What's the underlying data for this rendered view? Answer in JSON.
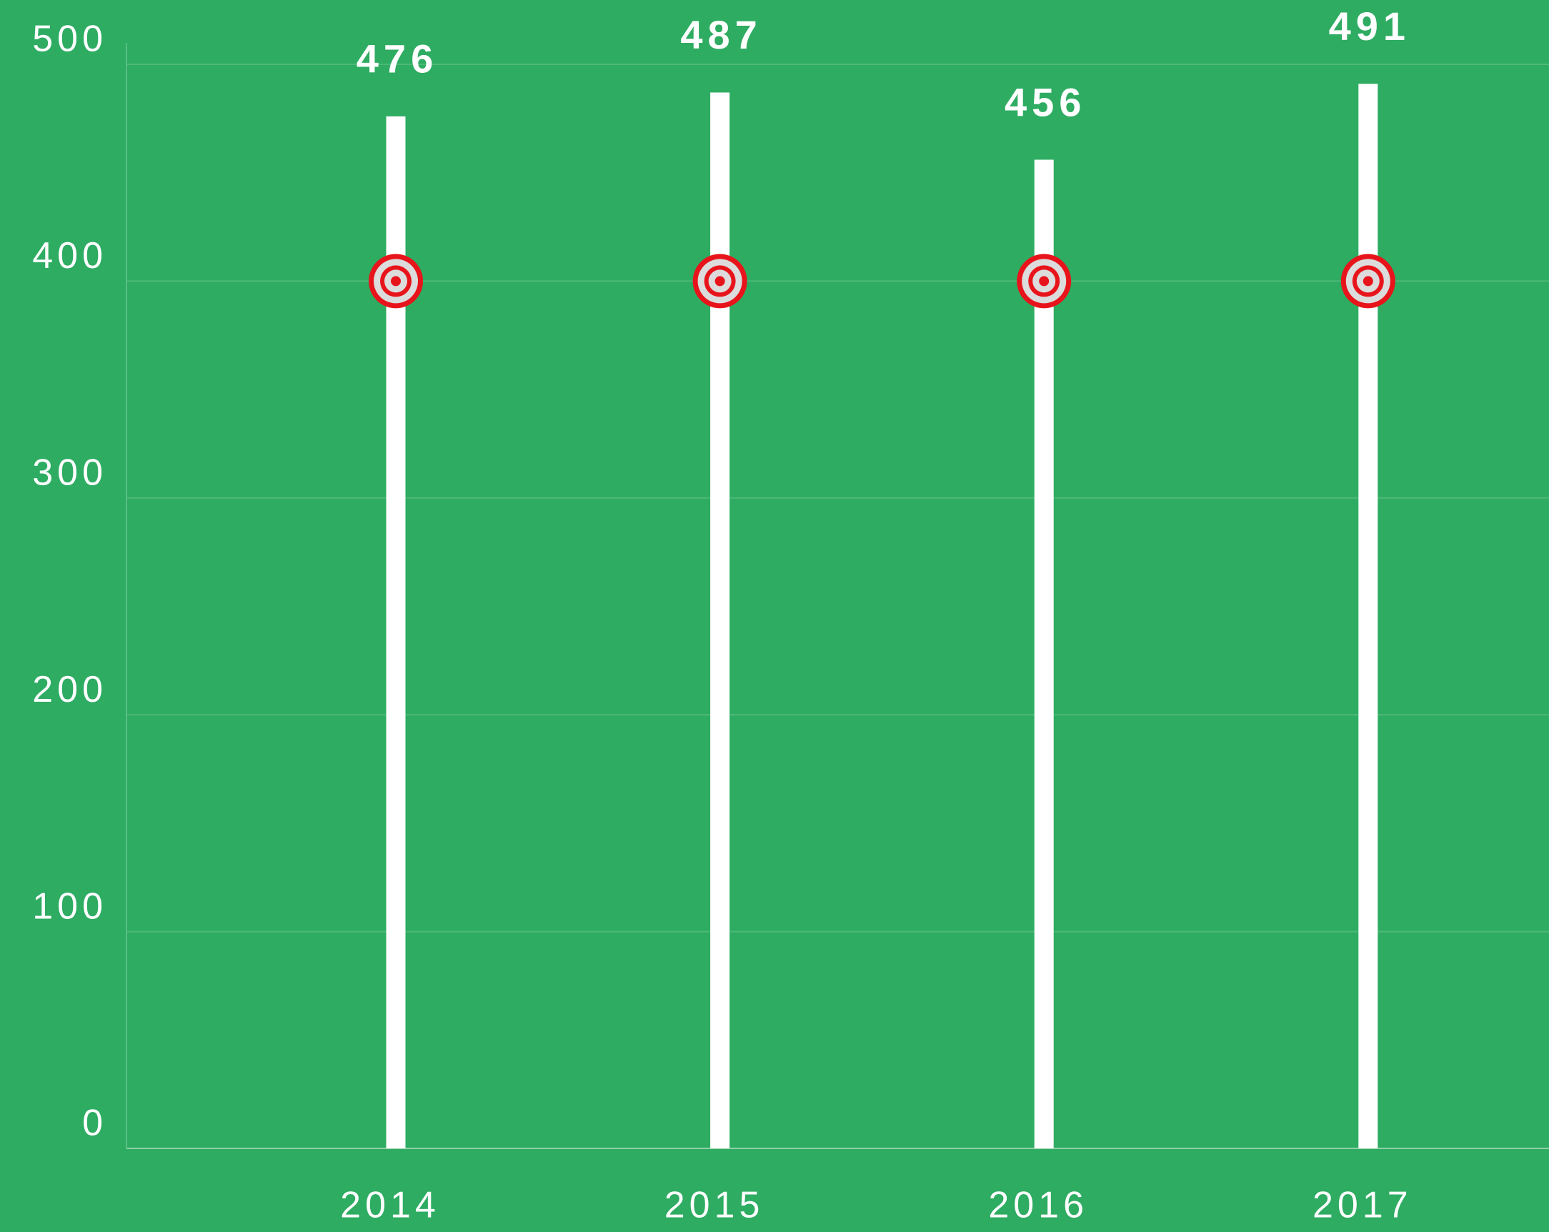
{
  "chart_data": {
    "type": "bar",
    "categories": [
      "2014",
      "2015",
      "2016",
      "2017"
    ],
    "values": [
      476,
      487,
      456,
      491
    ],
    "targets": [
      400,
      400,
      400,
      400
    ],
    "color": "#ffffff",
    "target_color": "#e8141b",
    "background": "#2eac62",
    "ylim": [
      0,
      500
    ],
    "yticks": [
      0,
      100,
      200,
      300,
      400,
      500
    ],
    "grid": true
  }
}
